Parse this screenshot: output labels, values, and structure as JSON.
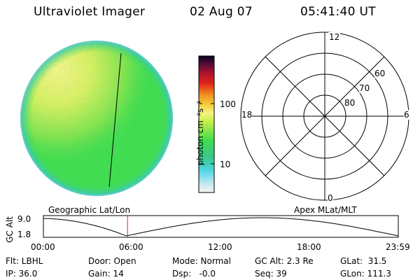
{
  "header": {
    "instrument": "Ultraviolet Imager",
    "date": "02 Aug 07",
    "time": "05:41:40 UT"
  },
  "colorbar": {
    "unit_label": "photon cm⁻²s⁻¹",
    "ticks": [
      "100",
      "10"
    ]
  },
  "polar_plot": {
    "mlt_labels": [
      "12",
      "18",
      "6",
      "0"
    ],
    "lat_labels": [
      "60",
      "70",
      "80"
    ]
  },
  "orbit_panel": {
    "left_label": "Geographic Lat/Lon",
    "right_label": "Apex MLat/MLT",
    "y_axis_label": "GC Alt",
    "y_ticks": [
      "9.0",
      "1.8"
    ],
    "x_ticks": [
      "00:00",
      "06:00",
      "12:00",
      "18:00",
      "23:59"
    ],
    "marker_time_hours": 5.69
  },
  "status": {
    "row1": {
      "flt": "Flt: LBHL",
      "door": "Door: Open",
      "mode": "Mode: Normal",
      "gc_alt": "GC Alt: 2.3 Re",
      "glat": "GLat:  31.5"
    },
    "row2": {
      "ip": "IP: 36.0",
      "gain": "Gain: 14",
      "dsp": "Dsp:   -0.0",
      "seq": "Seq: 39",
      "glon": "GLon: 111.3"
    }
  },
  "colors": {
    "disk_green": "#3fdc4f",
    "disk_yellow": "#f2f27a",
    "marker_red": "#e0241c"
  }
}
